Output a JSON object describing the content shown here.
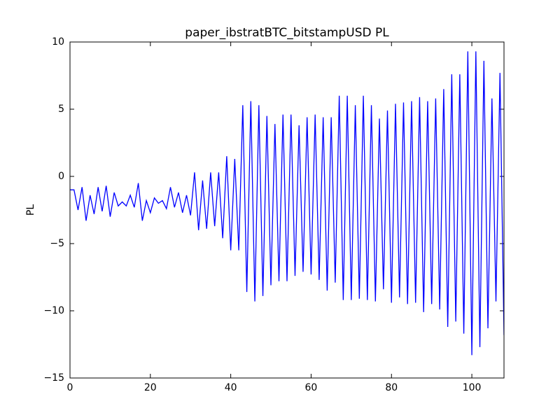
{
  "chart_data": {
    "type": "line",
    "title": "paper_ibstratBTC_bitstampUSD PL",
    "y_label": "PL",
    "x": [
      0,
      1,
      2,
      3,
      4,
      5,
      6,
      7,
      8,
      9,
      10,
      11,
      12,
      13,
      14,
      15,
      16,
      17,
      18,
      19,
      20,
      21,
      22,
      23,
      24,
      25,
      26,
      27,
      28,
      29,
      30,
      31,
      32,
      33,
      34,
      35,
      36,
      37,
      38,
      39,
      40,
      41,
      42,
      43,
      44,
      45,
      46,
      47,
      48,
      49,
      50,
      51,
      52,
      53,
      54,
      55,
      56,
      57,
      58,
      59,
      60,
      61,
      62,
      63,
      64,
      65,
      66,
      67,
      68,
      69,
      70,
      71,
      72,
      73,
      74,
      75,
      76,
      77,
      78,
      79,
      80,
      81,
      82,
      83,
      84,
      85,
      86,
      87,
      88,
      89,
      90,
      91,
      92,
      93,
      94,
      95,
      96,
      97,
      98,
      99,
      100,
      101,
      102,
      103,
      104,
      105,
      106,
      107,
      108
    ],
    "series": [
      {
        "name": "PL",
        "color": "#0000ff",
        "values": [
          -1.0,
          -1.0,
          -2.5,
          -0.8,
          -3.3,
          -1.4,
          -2.8,
          -0.8,
          -2.6,
          -0.7,
          -3.0,
          -1.2,
          -2.2,
          -1.9,
          -2.2,
          -1.4,
          -2.3,
          -0.5,
          -3.3,
          -1.8,
          -2.7,
          -1.6,
          -2.0,
          -1.8,
          -2.4,
          -0.8,
          -2.3,
          -1.2,
          -2.7,
          -1.4,
          -2.9,
          0.3,
          -4.0,
          -0.3,
          -3.9,
          0.3,
          -3.7,
          0.3,
          -4.6,
          1.5,
          -5.5,
          1.3,
          -5.5,
          5.3,
          -8.6,
          5.6,
          -9.3,
          5.3,
          -8.9,
          4.5,
          -8.1,
          3.9,
          -7.8,
          4.6,
          -7.8,
          4.6,
          -7.4,
          3.8,
          -7.1,
          4.4,
          -7.3,
          4.6,
          -7.7,
          4.4,
          -8.5,
          4.4,
          -7.9,
          6.0,
          -9.2,
          6.0,
          -9.2,
          5.3,
          -9.1,
          6.0,
          -9.2,
          5.3,
          -9.3,
          4.3,
          -8.4,
          4.9,
          -9.4,
          5.4,
          -9.0,
          5.5,
          -9.5,
          5.6,
          -9.4,
          5.9,
          -10.1,
          5.6,
          -9.5,
          5.8,
          -9.9,
          6.5,
          -11.2,
          7.6,
          -10.8,
          7.6,
          -11.7,
          9.3,
          -13.3,
          9.3,
          -12.7,
          8.6,
          -11.3,
          5.8,
          -9.3,
          7.7,
          -11.8
        ]
      }
    ],
    "xlim": [
      0,
      108
    ],
    "xticks": [
      0,
      20,
      40,
      60,
      80,
      100
    ],
    "ylim": [
      -15,
      10
    ],
    "yticks": [
      {
        "value": -15,
        "label": "−15"
      },
      {
        "value": -10,
        "label": "−10"
      },
      {
        "value": -5,
        "label": "−5"
      },
      0,
      5,
      10
    ],
    "grid": false
  }
}
